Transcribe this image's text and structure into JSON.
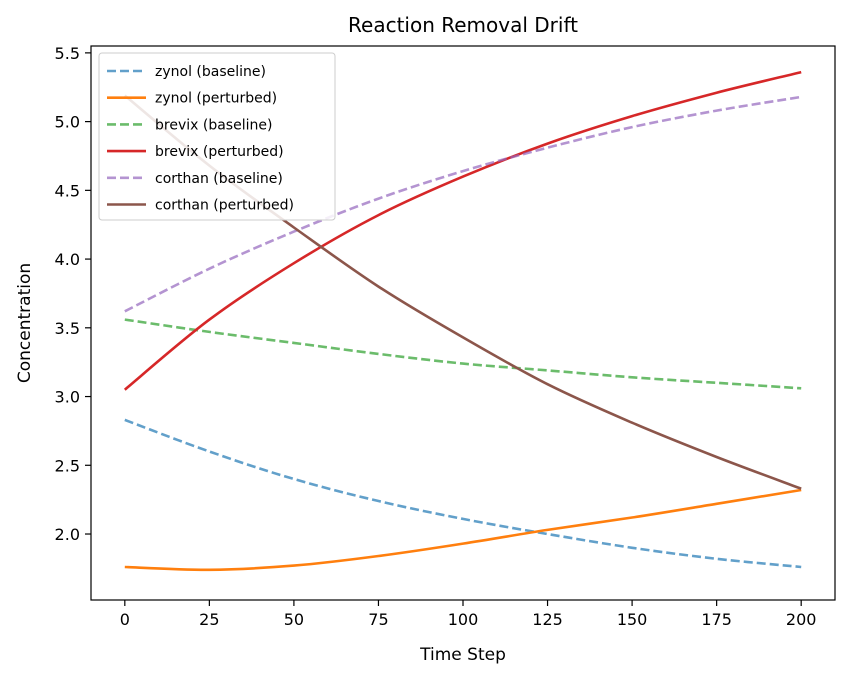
{
  "chart_data": {
    "type": "line",
    "title": "Reaction Removal Drift",
    "xlabel": "Time Step",
    "ylabel": "Concentration",
    "xlim": [
      -10,
      210
    ],
    "ylim": [
      1.52,
      5.55
    ],
    "xticks": [
      0,
      25,
      50,
      75,
      100,
      125,
      150,
      175,
      200
    ],
    "yticks": [
      2.0,
      2.5,
      3.0,
      3.5,
      4.0,
      4.5,
      5.0,
      5.5
    ],
    "ytick_labels": [
      "2.0",
      "2.5",
      "3.0",
      "3.5",
      "4.0",
      "4.5",
      "5.0",
      "5.5"
    ],
    "grid": false,
    "legend_position": "top-left",
    "x": [
      0,
      25,
      50,
      75,
      100,
      125,
      150,
      175,
      200
    ],
    "series": [
      {
        "name": "zynol (baseline)",
        "color": "#1f77b4",
        "style": "dashed",
        "alpha": 0.7,
        "values": [
          2.83,
          2.6,
          2.4,
          2.24,
          2.11,
          2.0,
          1.9,
          1.82,
          1.76
        ]
      },
      {
        "name": "zynol (perturbed)",
        "color": "#ff7f0e",
        "style": "solid",
        "alpha": 1,
        "values": [
          1.76,
          1.74,
          1.77,
          1.84,
          1.93,
          2.03,
          2.12,
          2.22,
          2.32
        ]
      },
      {
        "name": "brevix (baseline)",
        "color": "#2ca02c",
        "style": "dashed",
        "alpha": 0.7,
        "values": [
          3.56,
          3.47,
          3.39,
          3.31,
          3.24,
          3.19,
          3.14,
          3.1,
          3.06
        ]
      },
      {
        "name": "brevix (perturbed)",
        "color": "#d62728",
        "style": "solid",
        "alpha": 1,
        "values": [
          3.05,
          3.56,
          3.97,
          4.32,
          4.6,
          4.84,
          5.04,
          5.21,
          5.36
        ]
      },
      {
        "name": "corthan (baseline)",
        "color": "#9467bd",
        "style": "dashed",
        "alpha": 0.7,
        "values": [
          3.62,
          3.93,
          4.2,
          4.44,
          4.64,
          4.81,
          4.96,
          5.08,
          5.18
        ]
      },
      {
        "name": "corthan (perturbed)",
        "color": "#8c564b",
        "style": "solid",
        "alpha": 1,
        "values": [
          5.19,
          4.68,
          4.23,
          3.8,
          3.43,
          3.09,
          2.81,
          2.56,
          2.33
        ]
      }
    ]
  }
}
